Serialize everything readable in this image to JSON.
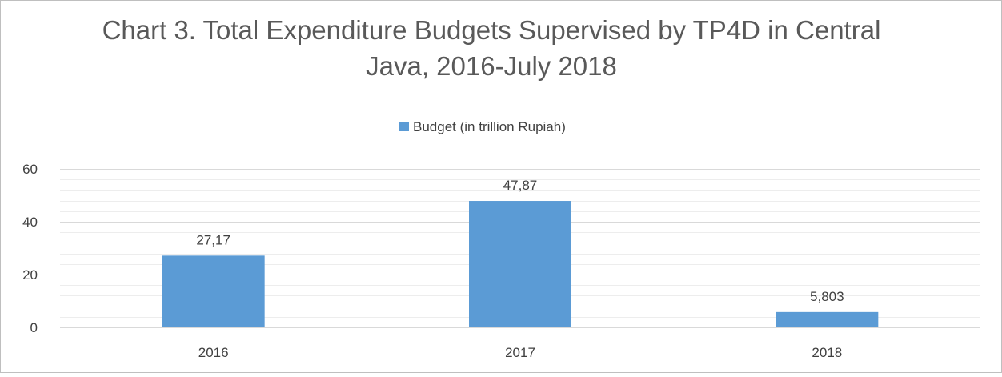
{
  "chart_data": {
    "type": "bar",
    "title_line1": "Chart 3. Total Expenditure Budgets Supervised by TP4D in Central",
    "title_line2": "Java, 2016-July 2018",
    "categories": [
      "2016",
      "2017",
      "2018"
    ],
    "series": [
      {
        "name": "Budget (in trillion Rupiah)",
        "values": [
          27.17,
          47.87,
          5.803
        ],
        "labels": [
          "27,17",
          "47,87",
          "5,803"
        ]
      }
    ],
    "ylim": [
      0,
      60
    ],
    "yticks": [
      0,
      20,
      40,
      60
    ],
    "yminor_step": 4,
    "grid": true,
    "legend_position": "top",
    "colors": {
      "bar": "#5b9bd5",
      "gridline": "#d9d9d9",
      "text": "#404040",
      "title": "#595959",
      "border": "#bfbfbf"
    }
  }
}
